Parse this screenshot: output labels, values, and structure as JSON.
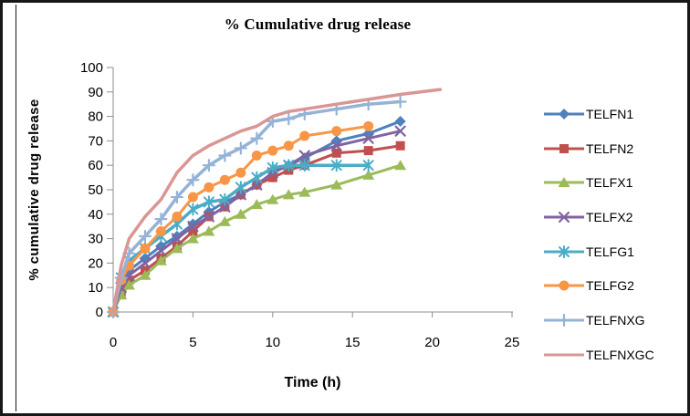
{
  "window": {
    "background": "#ffffff",
    "frame_color": "#181818"
  },
  "chart_data": {
    "type": "line",
    "title": "% Cumulative drug release",
    "xlabel": "Time (h)",
    "ylabel": "% cumulative drug release",
    "xlim": [
      0,
      25
    ],
    "ylim": [
      0,
      100
    ],
    "x_ticks": [
      0,
      5,
      10,
      15,
      20,
      25
    ],
    "y_ticks": [
      0,
      10,
      20,
      30,
      40,
      50,
      60,
      70,
      80,
      90,
      100
    ],
    "grid": false,
    "legend_position": "right",
    "axis_color": "#8e8e8e",
    "series": [
      {
        "name": "TELFN1",
        "color": "#4F81BD",
        "marker": "diamond",
        "line_width": 3,
        "x": [
          0,
          0.5,
          1,
          2,
          3,
          4,
          5,
          6,
          7,
          8,
          9,
          10,
          11,
          12,
          14,
          16,
          18
        ],
        "y": [
          0,
          12,
          17,
          22,
          27,
          31,
          36,
          41,
          45,
          48,
          52,
          57,
          60,
          63,
          70,
          73,
          78
        ]
      },
      {
        "name": "TELFN2",
        "color": "#C0504D",
        "marker": "square",
        "line_width": 3,
        "x": [
          0,
          0.5,
          1,
          2,
          3,
          4,
          5,
          6,
          7,
          8,
          9,
          10,
          11,
          12,
          14,
          16,
          18
        ],
        "y": [
          0,
          8,
          13,
          17,
          22,
          27,
          33,
          39,
          43,
          48,
          52,
          55,
          58,
          60,
          65,
          66,
          68
        ]
      },
      {
        "name": "TELFX1",
        "color": "#9BBB59",
        "marker": "triangle",
        "line_width": 3,
        "x": [
          0,
          0.5,
          1,
          2,
          3,
          4,
          5,
          6,
          7,
          8,
          9,
          10,
          11,
          12,
          14,
          16,
          18
        ],
        "y": [
          0,
          7,
          11,
          15,
          21,
          26,
          30,
          33,
          37,
          40,
          44,
          46,
          48,
          49,
          52,
          56,
          60
        ]
      },
      {
        "name": "TELFX2",
        "color": "#8064A2",
        "marker": "x",
        "line_width": 3,
        "x": [
          0,
          0.5,
          1,
          2,
          3,
          4,
          5,
          6,
          7,
          8,
          9,
          10,
          11,
          12,
          14,
          16,
          18
        ],
        "y": [
          0,
          10,
          15,
          20,
          25,
          30,
          35,
          39,
          43,
          48,
          52,
          57,
          60,
          64,
          68,
          71,
          74
        ]
      },
      {
        "name": "TELFG1",
        "color": "#4BACC6",
        "marker": "asterisk",
        "line_width": 3.5,
        "x": [
          0,
          0.5,
          1,
          2,
          3,
          4,
          5,
          6,
          7,
          8,
          9,
          10,
          11,
          12,
          14,
          16
        ],
        "y": [
          0,
          14,
          21,
          26,
          31,
          36,
          42,
          45,
          46,
          51,
          55,
          59,
          60,
          60,
          60,
          60
        ]
      },
      {
        "name": "TELFG2",
        "color": "#F79646",
        "marker": "circle",
        "line_width": 3,
        "x": [
          0,
          0.5,
          1,
          2,
          3,
          4,
          5,
          6,
          7,
          8,
          9,
          10,
          11,
          12,
          14,
          16
        ],
        "y": [
          0,
          13,
          19,
          26,
          33,
          39,
          47,
          51,
          54,
          57,
          64,
          66,
          68,
          72,
          74,
          76
        ]
      },
      {
        "name": "TELFNXG",
        "color": "#95B3D7",
        "marker": "plus",
        "line_width": 3.5,
        "x": [
          0,
          0.5,
          1,
          2,
          3,
          4,
          5,
          6,
          7,
          8,
          9,
          10,
          11,
          12,
          14,
          16,
          18
        ],
        "y": [
          0,
          14,
          24,
          31,
          38,
          47,
          54,
          60,
          64,
          67,
          71,
          78,
          79,
          81,
          83,
          85,
          86
        ]
      },
      {
        "name": "TELFNXGC",
        "color": "#D99694",
        "marker": "none",
        "line_width": 3.5,
        "x": [
          0,
          0.5,
          1,
          2,
          3,
          4,
          5,
          6,
          7,
          8,
          9,
          10,
          11,
          12,
          14,
          16,
          18,
          20.5
        ],
        "y": [
          0,
          19,
          30,
          39,
          46,
          57,
          64,
          68,
          71,
          74,
          76,
          80,
          82,
          83,
          85,
          87,
          89,
          91
        ]
      }
    ]
  }
}
